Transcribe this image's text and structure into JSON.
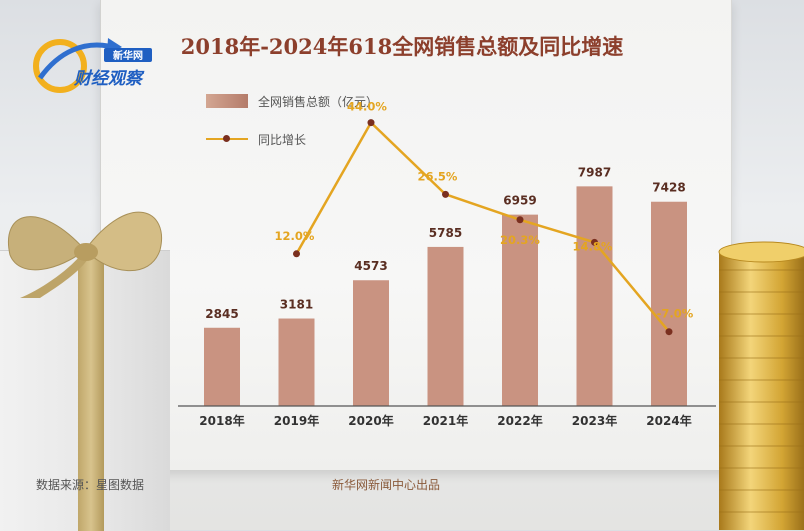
{
  "logo": {
    "badge": "新华网",
    "text": "财经观察"
  },
  "title": "2018年-2024年618全网销售总额及同比增速",
  "legend": {
    "bar_label": "全网销售总额（亿元）",
    "line_label": "同比增长"
  },
  "footer": {
    "source": "数据来源：星图数据",
    "credit": "新华网新闻中心出品"
  },
  "colors": {
    "bar": "#c99381",
    "line": "#e4a521",
    "marker": "#7a2f1f",
    "bar_label": "#5a2e22",
    "line_label": "#e4a521",
    "title": "#8c3f2c"
  },
  "chart_data": {
    "type": "bar",
    "categories": [
      "2018年",
      "2019年",
      "2020年",
      "2021年",
      "2022年",
      "2023年",
      "2024年"
    ],
    "series": [
      {
        "name": "全网销售总额（亿元）",
        "type": "bar",
        "values": [
          2845,
          3181,
          4573,
          5785,
          6959,
          7987,
          7428
        ],
        "labels": [
          "2845",
          "3181",
          "4573",
          "5785",
          "6959",
          "7987",
          "7428"
        ]
      },
      {
        "name": "同比增长",
        "type": "line",
        "x": [
          "2019年",
          "2020年",
          "2021年",
          "2022年",
          "2023年",
          "2024年"
        ],
        "values": [
          12.0,
          44.0,
          26.5,
          20.3,
          14.8,
          -7.0
        ],
        "labels": [
          "12.0%",
          "44.0%",
          "26.5%",
          "20.3%",
          "14.8%",
          "-7.0%"
        ]
      }
    ],
    "title": "2018年-2024年618全网销售总额及同比增速",
    "legend_position": "top-left",
    "grid": false
  }
}
